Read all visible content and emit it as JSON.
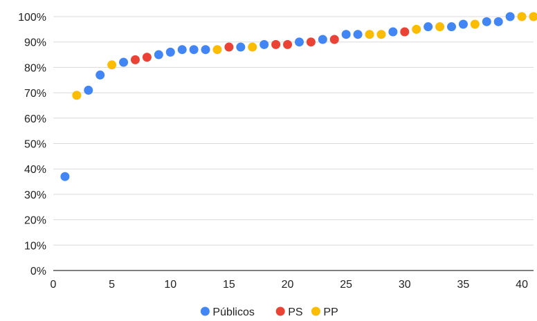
{
  "chart_data": {
    "type": "scatter",
    "title": "",
    "xlabel": "",
    "ylabel": "",
    "xlim": [
      0,
      41
    ],
    "ylim": [
      0,
      100
    ],
    "x_ticks": [
      0,
      5,
      10,
      15,
      20,
      25,
      30,
      35,
      40
    ],
    "y_ticks": [
      0,
      10,
      20,
      30,
      40,
      50,
      60,
      70,
      80,
      90,
      100
    ],
    "x_tick_labels": [
      "0",
      "5",
      "10",
      "15",
      "20",
      "25",
      "30",
      "35",
      "40"
    ],
    "y_tick_labels": [
      "0%",
      "10%",
      "20%",
      "30%",
      "40%",
      "50%",
      "60%",
      "70%",
      "80%",
      "90%",
      "100%"
    ],
    "grid": "horizontal",
    "legend_position": "bottom",
    "series": [
      {
        "name": "Públicos",
        "color": "#4285F4",
        "points": [
          {
            "x": 1,
            "y": 37
          },
          {
            "x": 3,
            "y": 71
          },
          {
            "x": 4,
            "y": 77
          },
          {
            "x": 6,
            "y": 82
          },
          {
            "x": 9,
            "y": 85
          },
          {
            "x": 10,
            "y": 86
          },
          {
            "x": 11,
            "y": 87
          },
          {
            "x": 12,
            "y": 87
          },
          {
            "x": 13,
            "y": 87
          },
          {
            "x": 16,
            "y": 88
          },
          {
            "x": 18,
            "y": 89
          },
          {
            "x": 21,
            "y": 90
          },
          {
            "x": 23,
            "y": 91
          },
          {
            "x": 25,
            "y": 93
          },
          {
            "x": 26,
            "y": 93
          },
          {
            "x": 29,
            "y": 94
          },
          {
            "x": 32,
            "y": 96
          },
          {
            "x": 34,
            "y": 96
          },
          {
            "x": 35,
            "y": 97
          },
          {
            "x": 37,
            "y": 98
          },
          {
            "x": 38,
            "y": 98
          },
          {
            "x": 39,
            "y": 100
          }
        ]
      },
      {
        "name": "PS",
        "color": "#EA4335",
        "points": [
          {
            "x": 7,
            "y": 83
          },
          {
            "x": 8,
            "y": 84
          },
          {
            "x": 15,
            "y": 88
          },
          {
            "x": 19,
            "y": 89
          },
          {
            "x": 20,
            "y": 89
          },
          {
            "x": 22,
            "y": 90
          },
          {
            "x": 24,
            "y": 91
          },
          {
            "x": 30,
            "y": 94
          }
        ]
      },
      {
        "name": "PP",
        "color": "#FBBC04",
        "points": [
          {
            "x": 2,
            "y": 69
          },
          {
            "x": 5,
            "y": 81
          },
          {
            "x": 14,
            "y": 87
          },
          {
            "x": 17,
            "y": 88
          },
          {
            "x": 27,
            "y": 93
          },
          {
            "x": 28,
            "y": 93
          },
          {
            "x": 31,
            "y": 95
          },
          {
            "x": 33,
            "y": 96
          },
          {
            "x": 36,
            "y": 97
          },
          {
            "x": 40,
            "y": 100
          },
          {
            "x": 41,
            "y": 100
          }
        ]
      }
    ]
  }
}
